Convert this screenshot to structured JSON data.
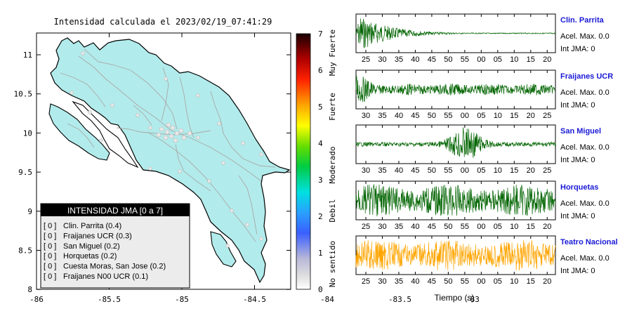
{
  "map": {
    "title": "Intensidad calculada el 2023/02/19_07:41:29",
    "x_ticks": [
      "-86",
      "-85.5",
      "-85",
      "-84.5",
      "-84",
      "-83.5",
      "-83"
    ],
    "y_ticks": [
      "11",
      "10.5",
      "10",
      "9.5",
      "9",
      "8.5",
      "8"
    ],
    "land_color": "#b2ebeb",
    "legend": {
      "title": "INTENSIDAD JMA [0 a 7]",
      "rows": [
        {
          "bracket": "[ 0 ]",
          "label": "Clin. Parrita (0.4)"
        },
        {
          "bracket": "[ 0 ]",
          "label": "Fraijanes UCR (0.3)"
        },
        {
          "bracket": "[ 0 ]",
          "label": "San Miguel (0.2)"
        },
        {
          "bracket": "[ 0 ]",
          "label": "Horquetas (0.2)"
        },
        {
          "bracket": "[ 0 ]",
          "label": "Cuesta Moras, San Jose (0.2)"
        },
        {
          "bracket": "[ 0 ]",
          "label": "Fraijanes N00 UCR (0.1)"
        }
      ]
    }
  },
  "colorbar": {
    "ticks": [
      "7",
      "6",
      "5",
      "4",
      "3",
      "2",
      "1",
      "0"
    ],
    "labels": [
      "Muy Fuerte",
      "Fuerte",
      "Moderado",
      "Debil",
      "No sentido"
    ]
  },
  "chart_data": {
    "type": "line",
    "xlabel": "Tiempo (s)",
    "traces": [
      {
        "name": "Clin. Parrita",
        "accel": "Acel. Max. 0.0",
        "jma": "Int JMA: 0",
        "ticks": [
          "25",
          "30",
          "35",
          "40",
          "45",
          "50",
          "55",
          "00",
          "05",
          "10",
          "15",
          "20"
        ],
        "color": "#006400",
        "envelope": "decay"
      },
      {
        "name": "Fraijanes UCR",
        "accel": "Acel. Max. 0.0",
        "jma": "Int JMA: 0",
        "ticks": [
          "30",
          "35",
          "40",
          "45",
          "50",
          "55",
          "00",
          "05",
          "10",
          "15",
          "20",
          "25"
        ],
        "color": "#006400",
        "envelope": "burst_then_steady"
      },
      {
        "name": "San Miguel",
        "accel": "Acel. Max. 0.0",
        "jma": "Int JMA: 0",
        "ticks": [
          "30",
          "35",
          "40",
          "45",
          "50",
          "55",
          "00",
          "05",
          "10",
          "15",
          "20",
          "25"
        ],
        "color": "#006400",
        "envelope": "central_burst"
      },
      {
        "name": "Horquetas",
        "accel": "Acel. Max. 0.0",
        "jma": "Int JMA: 0",
        "ticks": [
          "25",
          "30",
          "35",
          "40",
          "45",
          "50",
          "55",
          "00",
          "05",
          "10",
          "15",
          "20"
        ],
        "color": "#006400",
        "envelope": "steady"
      },
      {
        "name": "Teatro Nacional",
        "accel": "Acel. Max. 0.0",
        "jma": "Int JMA: 0",
        "ticks": [
          "25",
          "30",
          "35",
          "40",
          "45",
          "50",
          "55",
          "00",
          "05",
          "10",
          "15",
          "20"
        ],
        "color": "#ffa500",
        "envelope": "steady"
      }
    ]
  }
}
